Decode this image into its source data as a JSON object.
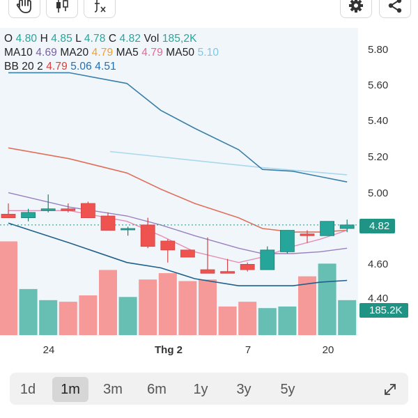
{
  "toolbar": {
    "left": [
      {
        "icon": "hand-drag-icon",
        "glyph": "✋"
      },
      {
        "icon": "candlestick-icon",
        "glyph": ""
      },
      {
        "icon": "indicator-function-icon",
        "glyph": "∫ₓ"
      }
    ],
    "right": [
      {
        "icon": "gear-icon",
        "glyph": "⚙"
      },
      {
        "icon": "share-icon",
        "glyph": ""
      }
    ]
  },
  "legend": {
    "ohlc": [
      {
        "key": "O",
        "value": "4.80",
        "color": "#26a69a"
      },
      {
        "key": "H",
        "value": "4.85",
        "color": "#26a69a"
      },
      {
        "key": "L",
        "value": "4.78",
        "color": "#26a69a"
      },
      {
        "key": "C",
        "value": "4.82",
        "color": "#26a69a"
      },
      {
        "key": "Vol",
        "value": "185,2K",
        "color": "#26a69a"
      }
    ],
    "ma": [
      {
        "key": "MA10",
        "value": "4.69",
        "color": "#7b5ea7"
      },
      {
        "key": "MA20",
        "value": "4.79",
        "color": "#f0a030"
      },
      {
        "key": "MA5",
        "value": "4.79",
        "color": "#e06a9a"
      },
      {
        "key": "MA50",
        "value": "5.10",
        "color": "#7ec8e3"
      }
    ],
    "bb": {
      "label": "BB 20 2",
      "values": [
        {
          "value": "4.79",
          "color": "#e53935"
        },
        {
          "value": "5.06",
          "color": "#1e6fb5"
        },
        {
          "value": "4.51",
          "color": "#1e6fb5"
        }
      ]
    }
  },
  "y_axis": {
    "ticks": [
      "5.80",
      "5.60",
      "5.40",
      "5.20",
      "5.00",
      "4.60",
      "4.40"
    ]
  },
  "x_axis": {
    "ticks": [
      {
        "label": "24",
        "bold": false
      },
      {
        "label": "Thg 2",
        "bold": true
      },
      {
        "label": "7",
        "bold": false
      },
      {
        "label": "20",
        "bold": false
      }
    ]
  },
  "price_tag": {
    "value": "4.82",
    "color": "#1f9384"
  },
  "volume_tag": {
    "value": "185.2K",
    "color": "#1f9384"
  },
  "timeframes": [
    {
      "label": "1d",
      "active": false
    },
    {
      "label": "1m",
      "active": true
    },
    {
      "label": "3m",
      "active": false
    },
    {
      "label": "6m",
      "active": false
    },
    {
      "label": "1y",
      "active": false
    },
    {
      "label": "3y",
      "active": false
    },
    {
      "label": "5y",
      "active": false
    }
  ],
  "expand_icon": "expand-diagonal-icon",
  "colors": {
    "up": "#26a69a",
    "down": "#ef5350",
    "volume_up": "#66bfb2",
    "volume_down": "#f59a98"
  },
  "chart_data": {
    "type": "candlestick",
    "y_range": [
      4.4,
      5.8
    ],
    "candles": [
      {
        "o": 4.88,
        "h": 4.94,
        "l": 4.86,
        "c": 4.86
      },
      {
        "o": 4.86,
        "h": 4.91,
        "l": 4.84,
        "c": 4.89
      },
      {
        "o": 4.9,
        "h": 4.99,
        "l": 4.89,
        "c": 4.91
      },
      {
        "o": 4.91,
        "h": 4.94,
        "l": 4.89,
        "c": 4.9
      },
      {
        "o": 4.94,
        "h": 4.95,
        "l": 4.86,
        "c": 4.86
      },
      {
        "o": 4.87,
        "h": 4.89,
        "l": 4.79,
        "c": 4.79
      },
      {
        "o": 4.8,
        "h": 4.81,
        "l": 4.76,
        "c": 4.8
      },
      {
        "o": 4.82,
        "h": 4.86,
        "l": 4.69,
        "c": 4.7
      },
      {
        "o": 4.73,
        "h": 4.74,
        "l": 4.61,
        "c": 4.68
      },
      {
        "o": 4.68,
        "h": 4.68,
        "l": 4.64,
        "c": 4.64
      },
      {
        "o": 4.57,
        "h": 4.75,
        "l": 4.55,
        "c": 4.55
      },
      {
        "o": 4.56,
        "h": 4.63,
        "l": 4.55,
        "c": 4.55
      },
      {
        "o": 4.6,
        "h": 4.61,
        "l": 4.56,
        "c": 4.57
      },
      {
        "o": 4.57,
        "h": 4.7,
        "l": 4.57,
        "c": 4.68
      },
      {
        "o": 4.67,
        "h": 4.79,
        "l": 4.66,
        "c": 4.79
      },
      {
        "o": 4.77,
        "h": 4.79,
        "l": 4.72,
        "c": 4.76
      },
      {
        "o": 4.76,
        "h": 4.84,
        "l": 4.76,
        "c": 4.84
      },
      {
        "o": 4.8,
        "h": 4.85,
        "l": 4.78,
        "c": 4.82
      }
    ],
    "volume_relative": [
      0.59,
      0.29,
      0.22,
      0.21,
      0.25,
      0.41,
      0.24,
      0.35,
      0.39,
      0.34,
      0.35,
      0.18,
      0.21,
      0.17,
      0.18,
      0.37,
      0.45,
      0.22
    ],
    "bb_upper": [
      [
        0,
        5.67
      ],
      [
        0.18,
        5.67
      ],
      [
        0.35,
        5.61
      ],
      [
        0.45,
        5.46
      ],
      [
        0.55,
        5.36
      ],
      [
        0.68,
        5.24
      ],
      [
        0.75,
        5.13
      ],
      [
        0.84,
        5.12
      ],
      [
        0.92,
        5.09
      ],
      [
        1.0,
        5.06
      ]
    ],
    "bb_middle": [
      [
        0,
        5.25
      ],
      [
        0.18,
        5.19
      ],
      [
        0.35,
        5.11
      ],
      [
        0.45,
        5.02
      ],
      [
        0.55,
        4.94
      ],
      [
        0.68,
        4.86
      ],
      [
        0.75,
        4.8
      ],
      [
        0.84,
        4.78
      ],
      [
        0.92,
        4.78
      ],
      [
        1.0,
        4.79
      ]
    ],
    "bb_lower": [
      [
        0,
        4.83
      ],
      [
        0.18,
        4.72
      ],
      [
        0.35,
        4.61
      ],
      [
        0.45,
        4.58
      ],
      [
        0.55,
        4.52
      ],
      [
        0.68,
        4.48
      ],
      [
        0.75,
        4.48
      ],
      [
        0.84,
        4.48
      ],
      [
        0.92,
        4.5
      ],
      [
        1.0,
        4.51
      ]
    ],
    "ma10": [
      [
        0,
        5.0
      ],
      [
        0.18,
        4.92
      ],
      [
        0.35,
        4.87
      ],
      [
        0.45,
        4.82
      ],
      [
        0.55,
        4.76
      ],
      [
        0.68,
        4.69
      ],
      [
        0.75,
        4.66
      ],
      [
        0.84,
        4.66
      ],
      [
        0.92,
        4.67
      ],
      [
        1.0,
        4.69
      ]
    ],
    "ma5": [
      [
        0,
        4.9
      ],
      [
        0.18,
        4.9
      ],
      [
        0.35,
        4.84
      ],
      [
        0.45,
        4.76
      ],
      [
        0.55,
        4.67
      ],
      [
        0.68,
        4.61
      ],
      [
        0.75,
        4.64
      ],
      [
        0.84,
        4.7
      ],
      [
        0.92,
        4.74
      ],
      [
        1.0,
        4.79
      ]
    ],
    "ma50": [
      [
        0.3,
        5.23
      ],
      [
        0.6,
        5.17
      ],
      [
        0.75,
        5.14
      ],
      [
        1.0,
        5.1
      ]
    ]
  }
}
